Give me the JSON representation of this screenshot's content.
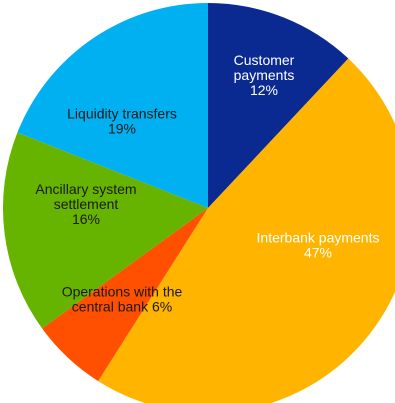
{
  "chart_data": {
    "type": "pie",
    "start_angle_deg": 0,
    "direction": "clockwise",
    "slices": [
      {
        "label": [
          "Customer",
          "payments"
        ],
        "value_text": "12%",
        "value": 12,
        "color": "#0b2a91",
        "text_color": "#ffffff"
      },
      {
        "label": [
          "Interbank payments"
        ],
        "value_text": "47%",
        "value": 47,
        "color": "#ffb400",
        "text_color": "#ffffff"
      },
      {
        "label": [
          "Operations with the",
          "central bank"
        ],
        "value_text": "6%",
        "value": 6,
        "color": "#ff4f00",
        "text_color": "#1a1a1a",
        "inline_value": true
      },
      {
        "label": [
          "Ancillary system",
          "settlement"
        ],
        "value_text": "16%",
        "value": 16,
        "color": "#66b300",
        "text_color": "#1a1a1a"
      },
      {
        "label": [
          "Liquidity transfers"
        ],
        "value_text": "19%",
        "value": 19,
        "color": "#00b0f0",
        "text_color": "#1a1a1a"
      }
    ]
  }
}
